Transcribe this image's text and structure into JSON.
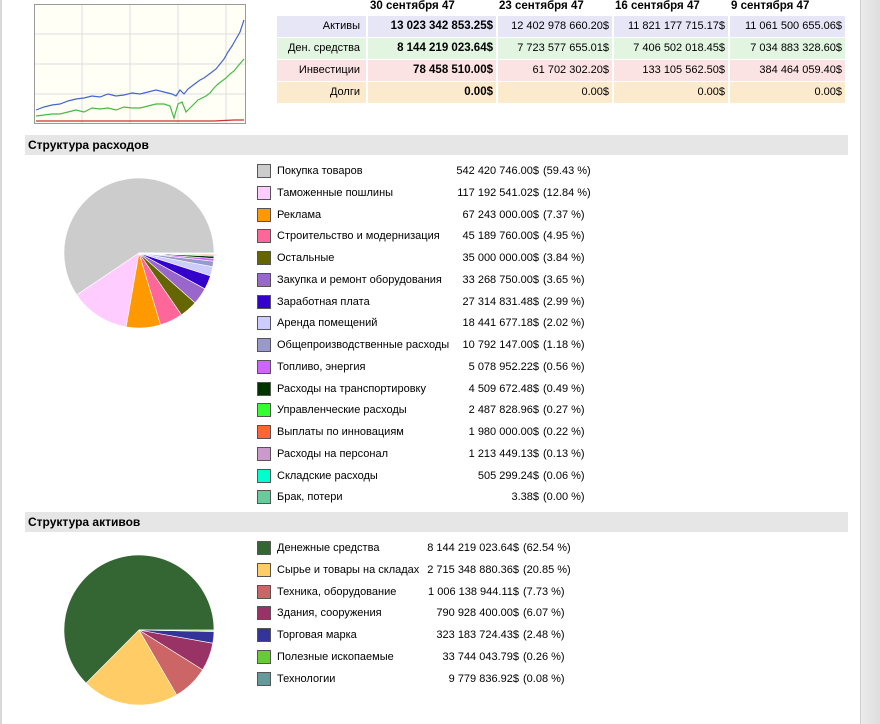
{
  "summary": {
    "dates": [
      "30 сентября 47",
      "23 сентября 47",
      "16 сентября 47",
      "9 сентября 47"
    ],
    "rows": [
      {
        "label": "Активы",
        "bg": "#e6e6f7",
        "values": [
          "13 023 342 853.25$",
          "12 402 978 660.20$",
          "11 821 177 715.17$",
          "11 061 500 655.06$"
        ]
      },
      {
        "label": "Ден. средства",
        "bg": "#e1f5e1",
        "values": [
          "8 144 219 023.64$",
          "7 723 577 655.01$",
          "7 406 502 018.45$",
          "7 034 883 328.60$"
        ]
      },
      {
        "label": "Инвестиции",
        "bg": "#fbe3e3",
        "values": [
          "78 458 510.00$",
          "61 702 302.20$",
          "133 105 562.50$",
          "384 464 059.40$"
        ]
      },
      {
        "label": "Долги",
        "bg": "#fbeacb",
        "values": [
          "0.00$",
          "0.00$",
          "0.00$",
          "0.00$"
        ]
      }
    ]
  },
  "mini_chart_colors": {
    "blue": "#4466cc",
    "green": "#44bb44",
    "red": "#cc3333",
    "bg": "#fffff6"
  },
  "expenses": {
    "title": "Структура расходов",
    "items": [
      {
        "name": "Покупка товаров",
        "value": "542 420 746.00$",
        "pct": "(59.43 %)",
        "share": 59.43,
        "color": "#cccccc"
      },
      {
        "name": "Таможенные пошлины",
        "value": "117 192 541.02$",
        "pct": "(12.84 %)",
        "share": 12.84,
        "color": "#ffccff"
      },
      {
        "name": "Реклама",
        "value": "67 243 000.00$",
        "pct": "(7.37 %)",
        "share": 7.37,
        "color": "#ff9900"
      },
      {
        "name": "Строительство и модернизация",
        "value": "45 189 760.00$",
        "pct": "(4.95 %)",
        "share": 4.95,
        "color": "#ff6699"
      },
      {
        "name": "Остальные",
        "value": "35 000 000.00$",
        "pct": "(3.84 %)",
        "share": 3.84,
        "color": "#666600"
      },
      {
        "name": "Закупка и ремонт оборудования",
        "value": "33 268 750.00$",
        "pct": "(3.65 %)",
        "share": 3.65,
        "color": "#9966cc"
      },
      {
        "name": "Заработная плата",
        "value": "27 314 831.48$",
        "pct": "(2.99 %)",
        "share": 2.99,
        "color": "#3300cc"
      },
      {
        "name": "Аренда помещений",
        "value": "18 441 677.18$",
        "pct": "(2.02 %)",
        "share": 2.02,
        "color": "#ccccff"
      },
      {
        "name": "Общепроизводственные расходы",
        "value": "10 792 147.00$",
        "pct": "(1.18 %)",
        "share": 1.18,
        "color": "#9999cc"
      },
      {
        "name": "Топливо, энергия",
        "value": "5 078 952.22$",
        "pct": "(0.56 %)",
        "share": 0.56,
        "color": "#cc66ff"
      },
      {
        "name": "Расходы на транспортировку",
        "value": "4 509 672.48$",
        "pct": "(0.49 %)",
        "share": 0.49,
        "color": "#003300"
      },
      {
        "name": "Управленческие расходы",
        "value": "2 487 828.96$",
        "pct": "(0.27 %)",
        "share": 0.27,
        "color": "#33ff33"
      },
      {
        "name": "Выплаты по инновациям",
        "value": "1 980 000.00$",
        "pct": "(0.22 %)",
        "share": 0.22,
        "color": "#ff6633"
      },
      {
        "name": "Расходы на персонал",
        "value": "1 213 449.13$",
        "pct": "(0.13 %)",
        "share": 0.13,
        "color": "#cc99cc"
      },
      {
        "name": "Складские расходы",
        "value": "505 299.24$",
        "pct": "(0.06 %)",
        "share": 0.06,
        "color": "#00ffcc"
      },
      {
        "name": "Брак, потери",
        "value": "3.38$",
        "pct": "(0.00 %)",
        "share": 0.0,
        "color": "#66cc99"
      }
    ]
  },
  "assets": {
    "title": "Структура активов",
    "items": [
      {
        "name": "Денежные средства",
        "value": "8 144 219 023.64$",
        "pct": "(62.54 %)",
        "share": 62.54,
        "color": "#336633"
      },
      {
        "name": "Сырье и товары на складах",
        "value": "2 715 348 880.36$",
        "pct": "(20.85 %)",
        "share": 20.85,
        "color": "#ffcc66"
      },
      {
        "name": "Техника, оборудование",
        "value": "1 006 138 944.11$",
        "pct": "(7.73 %)",
        "share": 7.73,
        "color": "#cc6666"
      },
      {
        "name": "Здания, сооружения",
        "value": "790 928 400.00$",
        "pct": "(6.07 %)",
        "share": 6.07,
        "color": "#993366"
      },
      {
        "name": "Торговая марка",
        "value": "323 183 724.43$",
        "pct": "(2.48 %)",
        "share": 2.48,
        "color": "#333399"
      },
      {
        "name": "Полезные ископаемые",
        "value": "33 744 043.79$",
        "pct": "(0.26 %)",
        "share": 0.26,
        "color": "#66cc33"
      },
      {
        "name": "Технологии",
        "value": "9 779 836.92$",
        "pct": "(0.08 %)",
        "share": 0.08,
        "color": "#669999"
      }
    ]
  }
}
